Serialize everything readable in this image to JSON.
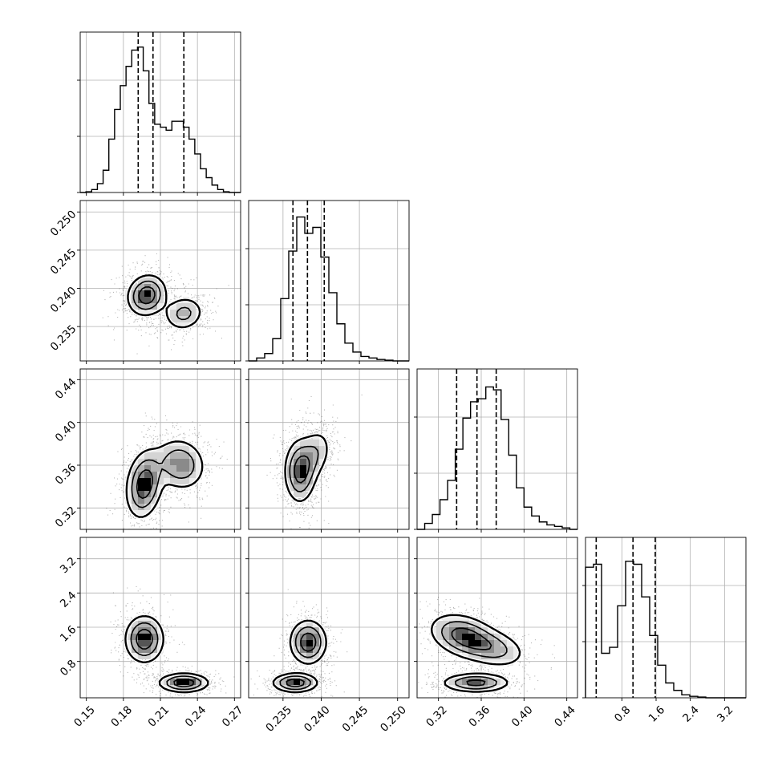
{
  "chart_data": {
    "type": "corner",
    "grid": true,
    "quantile_lines": "dashed",
    "parameters": [
      {
        "range": [
          0.145,
          0.275
        ],
        "ticks": [
          0.15,
          0.18,
          0.21,
          0.24,
          0.27
        ],
        "tick_labels": [
          "0.15",
          "0.18",
          "0.21",
          "0.24",
          "0.27"
        ],
        "quantiles": [
          0.192,
          0.204,
          0.229
        ],
        "histogram": [
          0,
          0.005,
          0.02,
          0.06,
          0.15,
          0.36,
          0.56,
          0.72,
          0.85,
          0.96,
          0.98,
          0.82,
          0.6,
          0.46,
          0.44,
          0.42,
          0.48,
          0.48,
          0.44,
          0.36,
          0.26,
          0.16,
          0.1,
          0.05,
          0.02,
          0.005,
          0,
          0
        ]
      },
      {
        "range": [
          0.2305,
          0.2515
        ],
        "ticks": [
          0.235,
          0.24,
          0.245,
          0.25
        ],
        "tick_labels": [
          "0.235",
          "0.240",
          "0.245",
          "0.250"
        ],
        "quantiles": [
          0.2363,
          0.2382,
          0.2404
        ],
        "histogram": [
          0,
          0.02,
          0.05,
          0.15,
          0.42,
          0.74,
          0.97,
          0.86,
          0.9,
          0.7,
          0.46,
          0.25,
          0.12,
          0.06,
          0.03,
          0.02,
          0.01,
          0.005,
          0,
          0
        ]
      },
      {
        "range": [
          0.3,
          0.45
        ],
        "ticks": [
          0.32,
          0.36,
          0.4,
          0.44
        ],
        "tick_labels": [
          "0.32",
          "0.36",
          "0.40",
          "0.44"
        ],
        "quantiles": [
          0.337,
          0.356,
          0.374
        ],
        "histogram": [
          0,
          0.04,
          0.1,
          0.2,
          0.33,
          0.54,
          0.75,
          0.86,
          0.88,
          0.96,
          0.94,
          0.74,
          0.5,
          0.28,
          0.15,
          0.09,
          0.05,
          0.03,
          0.02,
          0.01,
          0
        ]
      },
      {
        "range": [
          -0.05,
          3.7
        ],
        "ticks": [
          0.8,
          1.6,
          2.4,
          3.2
        ],
        "tick_labels": [
          "0.8",
          "1.6",
          "2.4",
          "3.2"
        ],
        "quantiles": [
          0.2,
          1.06,
          1.58
        ],
        "histogram": [
          0.88,
          0.9,
          0.3,
          0.34,
          0.62,
          0.92,
          0.9,
          0.68,
          0.42,
          0.22,
          0.1,
          0.05,
          0.02,
          0.01,
          0.005,
          0,
          0,
          0,
          0,
          0
        ]
      }
    ],
    "pairs": [
      {
        "row": 1,
        "col": 0,
        "modes": [
          {
            "cx": 0.199,
            "cy": 0.2391,
            "sx": 0.0085,
            "sy": 0.00145,
            "rho": 0.1,
            "w": 1.0
          },
          {
            "cx": 0.229,
            "cy": 0.2367,
            "sx": 0.009,
            "sy": 0.00125,
            "rho": 0.1,
            "w": 0.55
          }
        ]
      },
      {
        "row": 2,
        "col": 0,
        "modes": [
          {
            "cx": 0.197,
            "cy": 0.342,
            "sx": 0.008,
            "sy": 0.017,
            "rho": 0.2,
            "w": 1.0
          },
          {
            "cx": 0.226,
            "cy": 0.361,
            "sx": 0.011,
            "sy": 0.013,
            "rho": -0.1,
            "w": 0.75
          }
        ]
      },
      {
        "row": 2,
        "col": 1,
        "modes": [
          {
            "cx": 0.2372,
            "cy": 0.354,
            "sx": 0.0011,
            "sy": 0.016,
            "rho": 0.0,
            "w": 1.0
          },
          {
            "cx": 0.2391,
            "cy": 0.37,
            "sx": 0.0013,
            "sy": 0.014,
            "rho": 0.3,
            "w": 0.5
          }
        ]
      },
      {
        "row": 3,
        "col": 0,
        "modes": [
          {
            "cx": 0.197,
            "cy": 1.32,
            "sx": 0.0085,
            "sy": 0.3,
            "rho": 0.0,
            "w": 1.0
          },
          {
            "cx": 0.229,
            "cy": 0.3,
            "sx": 0.011,
            "sy": 0.12,
            "rho": 0.0,
            "w": 1.0
          }
        ]
      },
      {
        "row": 3,
        "col": 1,
        "modes": [
          {
            "cx": 0.2383,
            "cy": 1.25,
            "sx": 0.0013,
            "sy": 0.28,
            "rho": 0.0,
            "w": 1.0
          },
          {
            "cx": 0.2366,
            "cy": 0.3,
            "sx": 0.0016,
            "sy": 0.12,
            "rho": 0.0,
            "w": 1.0
          }
        ]
      },
      {
        "row": 3,
        "col": 2,
        "modes": [
          {
            "cx": 0.343,
            "cy": 1.4,
            "sx": 0.017,
            "sy": 0.28,
            "rho": -0.3,
            "w": 1.0
          },
          {
            "cx": 0.372,
            "cy": 1.1,
            "sx": 0.017,
            "sy": 0.25,
            "rho": -0.3,
            "w": 0.6
          },
          {
            "cx": 0.355,
            "cy": 0.3,
            "sx": 0.017,
            "sy": 0.12,
            "rho": 0.0,
            "w": 1.0
          }
        ]
      }
    ]
  }
}
